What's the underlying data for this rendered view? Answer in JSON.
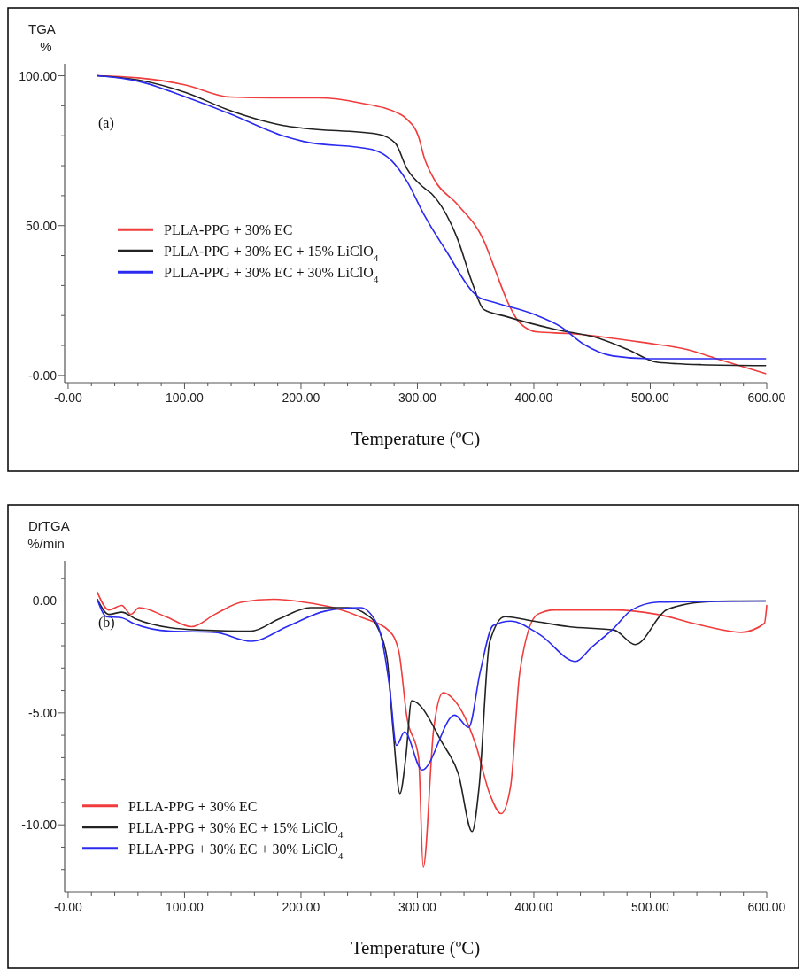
{
  "chart_data": [
    {
      "type": "line",
      "ylabel": "TGA %",
      "xlabel": "Temperature (ºC)",
      "annotations": [
        "(a)"
      ],
      "legend": "left",
      "line_style": "solid",
      "grid": false,
      "xlim": [
        -3,
        600
      ],
      "ylim": [
        -2.4,
        104
      ],
      "xticks": [
        {
          "value": 0,
          "label": "-0.00"
        },
        {
          "value": 20,
          "label": null
        },
        {
          "value": 40,
          "label": null
        },
        {
          "value": 60,
          "label": null
        },
        {
          "value": 80,
          "label": null
        },
        {
          "value": 100,
          "label": "100.00"
        },
        {
          "value": 120,
          "label": null
        },
        {
          "value": 140,
          "label": null
        },
        {
          "value": 160,
          "label": null
        },
        {
          "value": 180,
          "label": null
        },
        {
          "value": 200,
          "label": "200.00"
        },
        {
          "value": 220,
          "label": null
        },
        {
          "value": 240,
          "label": null
        },
        {
          "value": 260,
          "label": null
        },
        {
          "value": 280,
          "label": null
        },
        {
          "value": 300,
          "label": "300.00"
        },
        {
          "value": 320,
          "label": null
        },
        {
          "value": 340,
          "label": null
        },
        {
          "value": 360,
          "label": null
        },
        {
          "value": 380,
          "label": null
        },
        {
          "value": 400,
          "label": "400.00"
        },
        {
          "value": 420,
          "label": null
        },
        {
          "value": 440,
          "label": null
        },
        {
          "value": 460,
          "label": null
        },
        {
          "value": 480,
          "label": null
        },
        {
          "value": 500,
          "label": "500.00"
        },
        {
          "value": 520,
          "label": null
        },
        {
          "value": 540,
          "label": null
        },
        {
          "value": 560,
          "label": null
        },
        {
          "value": 580,
          "label": null
        },
        {
          "value": 600,
          "label": "600.00"
        }
      ],
      "yticks": [
        {
          "value": 0,
          "label": "-0.00"
        },
        {
          "value": 10,
          "label": null
        },
        {
          "value": 20,
          "label": null
        },
        {
          "value": 30,
          "label": null
        },
        {
          "value": 40,
          "label": null
        },
        {
          "value": 50,
          "label": "50.00"
        },
        {
          "value": 60,
          "label": null
        },
        {
          "value": 70,
          "label": null
        },
        {
          "value": 80,
          "label": null
        },
        {
          "value": 90,
          "label": null
        },
        {
          "value": 100,
          "label": "100.00"
        }
      ],
      "series": [
        {
          "name": "PLLA-PPG + 30% EC",
          "color": "#f03c3c",
          "x": [
            25,
            60,
            100,
            139,
            175,
            215,
            250,
            286,
            291,
            301,
            306,
            314,
            335,
            357,
            367,
            377,
            388,
            403,
            430,
            494,
            532,
            557,
            599
          ],
          "values": [
            100,
            99.3,
            97,
            92.9,
            92.6,
            92.6,
            91,
            87,
            85.5,
            79.6,
            72.5,
            65.7,
            56.8,
            45,
            35,
            25,
            17.5,
            14.5,
            14,
            11,
            8.6,
            5.6,
            0.6
          ]
        },
        {
          "name": "PLLA-PPG + 30% EC + 15% LiClO$_{4}$",
          "color": "#222222",
          "x": [
            25,
            60,
            101,
            139,
            185,
            202,
            266,
            281,
            291,
            306,
            312,
            335,
            347,
            357,
            375,
            418,
            456,
            481,
            506,
            544,
            599
          ],
          "values": [
            100,
            98.6,
            94.4,
            88.4,
            83.4,
            82.5,
            80.5,
            77.5,
            69,
            62.5,
            60.7,
            45,
            31,
            22,
            19.8,
            15.4,
            12.4,
            8.6,
            4.4,
            3.6,
            3.3
          ]
        },
        {
          "name": "PLLA-PPG + 30% EC + 30% LiClO$_{4}$",
          "color": "#2a2af0",
          "x": [
            25,
            60,
            101,
            139,
            185,
            202,
            261,
            278,
            291,
            306,
            324,
            352,
            367,
            400,
            423,
            443,
            468,
            499,
            599
          ],
          "values": [
            100,
            98.2,
            92.9,
            87.3,
            79.9,
            78.1,
            75.4,
            71.6,
            64.8,
            53.4,
            42,
            26.3,
            24.3,
            20.4,
            16.3,
            10.4,
            6.5,
            5.6,
            5.6
          ]
        }
      ]
    },
    {
      "type": "line",
      "ylabel": "DrTGA %/min",
      "xlabel": "Temperature (ºC)",
      "annotations": [
        "(b)"
      ],
      "legend": "bottom left",
      "line_style": "solid",
      "grid": false,
      "xlim": [
        -3,
        600
      ],
      "ylim": [
        -13,
        1.8
      ],
      "xticks": [
        {
          "value": 0,
          "label": "-0.00"
        },
        {
          "value": 20,
          "label": null
        },
        {
          "value": 40,
          "label": null
        },
        {
          "value": 60,
          "label": null
        },
        {
          "value": 80,
          "label": null
        },
        {
          "value": 100,
          "label": "100.00"
        },
        {
          "value": 120,
          "label": null
        },
        {
          "value": 140,
          "label": null
        },
        {
          "value": 160,
          "label": null
        },
        {
          "value": 180,
          "label": null
        },
        {
          "value": 200,
          "label": "200.00"
        },
        {
          "value": 220,
          "label": null
        },
        {
          "value": 240,
          "label": null
        },
        {
          "value": 260,
          "label": null
        },
        {
          "value": 280,
          "label": null
        },
        {
          "value": 300,
          "label": "300.00"
        },
        {
          "value": 320,
          "label": null
        },
        {
          "value": 340,
          "label": null
        },
        {
          "value": 360,
          "label": null
        },
        {
          "value": 380,
          "label": null
        },
        {
          "value": 400,
          "label": "400.00"
        },
        {
          "value": 420,
          "label": null
        },
        {
          "value": 440,
          "label": null
        },
        {
          "value": 460,
          "label": null
        },
        {
          "value": 480,
          "label": null
        },
        {
          "value": 500,
          "label": "500.00"
        },
        {
          "value": 520,
          "label": null
        },
        {
          "value": 540,
          "label": null
        },
        {
          "value": 560,
          "label": null
        },
        {
          "value": 580,
          "label": null
        },
        {
          "value": 600,
          "label": "600.00"
        }
      ],
      "yticks": [
        {
          "value": -12,
          "label": null
        },
        {
          "value": -11,
          "label": null
        },
        {
          "value": -10,
          "label": "-10.00"
        },
        {
          "value": -9,
          "label": null
        },
        {
          "value": -8,
          "label": null
        },
        {
          "value": -7,
          "label": null
        },
        {
          "value": -6,
          "label": null
        },
        {
          "value": -5,
          "label": "-5.00"
        },
        {
          "value": -4,
          "label": null
        },
        {
          "value": -3,
          "label": null
        },
        {
          "value": -2,
          "label": null
        },
        {
          "value": -1,
          "label": null
        },
        {
          "value": 0,
          "label": "0.00"
        },
        {
          "value": 1,
          "label": null
        }
      ],
      "series": [
        {
          "name": "PLLA-PPG + 30% EC",
          "color": "#f03c3c",
          "x": [
            25,
            35,
            46,
            54,
            61,
            84,
            106,
            126,
            149,
            177,
            202,
            228,
            253,
            276,
            284,
            291,
            301,
            305,
            314,
            322,
            332,
            350,
            362,
            372,
            380,
            388,
            403,
            418,
            469,
            506,
            545,
            578,
            598,
            600
          ],
          "values": [
            0.4,
            -0.4,
            -0.2,
            -0.6,
            -0.3,
            -0.7,
            -1.15,
            -0.6,
            -0.05,
            0.08,
            -0.05,
            -0.3,
            -0.75,
            -1.35,
            -2.25,
            -5.2,
            -7,
            -11.9,
            -5.7,
            -4.1,
            -4.45,
            -6.4,
            -8.6,
            -9.5,
            -8.3,
            -3.15,
            -0.6,
            -0.4,
            -0.4,
            -0.6,
            -1.1,
            -1.4,
            -1,
            -0.2
          ]
        },
        {
          "name": "PLLA-PPG + 30% EC + 15% LiClO$_{4}$",
          "color": "#222222",
          "x": [
            25,
            35,
            46,
            58,
            88,
            114,
            157,
            182,
            208,
            240,
            256,
            266,
            274,
            279,
            285,
            290,
            295,
            322,
            335,
            347,
            353,
            362,
            375,
            400,
            430,
            469,
            487,
            514,
            545,
            570,
            599
          ],
          "values": [
            0.08,
            -0.6,
            -0.5,
            -0.8,
            -1.2,
            -1.3,
            -1.35,
            -0.78,
            -0.3,
            -0.3,
            -0.6,
            -1.2,
            -2.6,
            -5.7,
            -8.6,
            -7,
            -4.45,
            -6.4,
            -7.7,
            -10.3,
            -8.3,
            -1.85,
            -0.7,
            -0.9,
            -1.15,
            -1.3,
            -1.95,
            -0.4,
            -0.05,
            0,
            0
          ]
        },
        {
          "name": "PLLA-PPG + 30% EC + 30% LiClO$_{4}$",
          "color": "#2a2af0",
          "x": [
            25,
            33,
            46,
            56,
            88,
            126,
            157,
            190,
            221,
            251,
            266,
            276,
            282,
            289,
            304,
            332,
            344,
            354,
            365,
            380,
            405,
            436,
            449,
            469,
            484,
            507,
            599
          ],
          "values": [
            0.08,
            -0.7,
            -0.75,
            -1,
            -1.35,
            -1.4,
            -1.8,
            -1.1,
            -0.45,
            -0.3,
            -1.1,
            -3.8,
            -6.45,
            -5.85,
            -7.55,
            -5.1,
            -5.65,
            -3.15,
            -1.1,
            -0.9,
            -1.5,
            -2.7,
            -2.1,
            -1.2,
            -0.4,
            -0.05,
            0
          ]
        }
      ]
    }
  ]
}
